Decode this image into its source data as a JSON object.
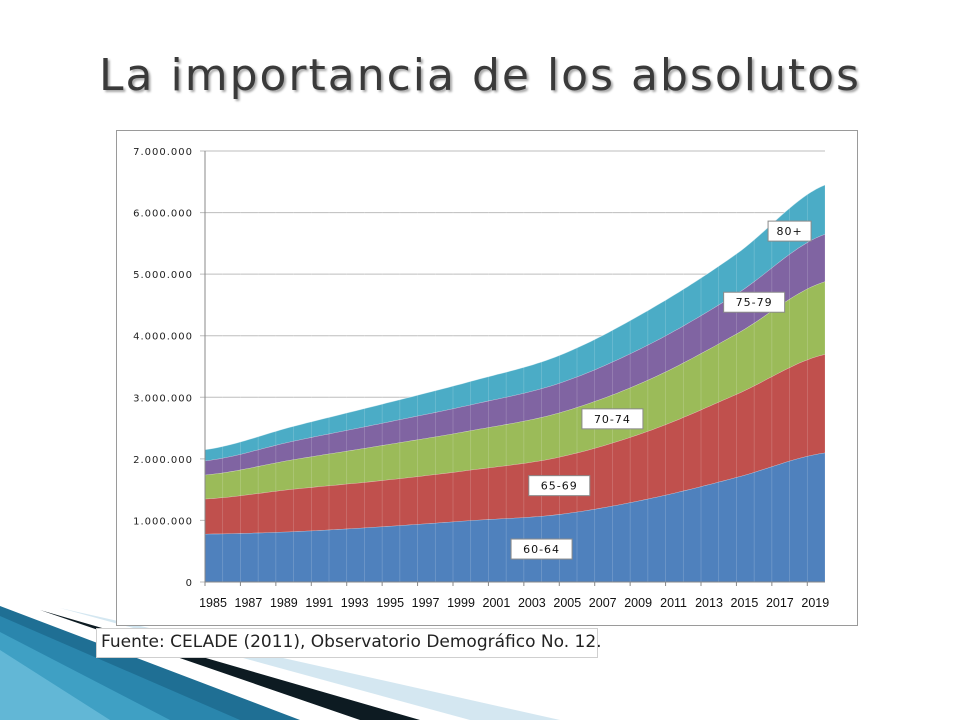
{
  "slide": {
    "title": "La importancia de los absolutos",
    "source_note": "Fuente: CELADE (2011), Observatorio Demográfico No. 12."
  },
  "colors": {
    "60-64": "#4f81bd",
    "65-69": "#c0504d",
    "70-74": "#9bbb59",
    "75-79": "#8064a2",
    "80+": "#4bacc6"
  },
  "chart_data": {
    "type": "area",
    "stacked": true,
    "x": [
      1985,
      1990,
      1995,
      2000,
      2005,
      2010,
      2015,
      2020
    ],
    "x_tick_labels": [
      "1985",
      "1987",
      "1989",
      "1991",
      "1993",
      "1995",
      "1997",
      "1999",
      "2001",
      "2003",
      "2005",
      "2007",
      "2009",
      "2011",
      "2013",
      "2015",
      "2017",
      "2019"
    ],
    "y_tick_labels": [
      "0",
      "1.000.000",
      "2.000.000",
      "3.000.000",
      "4.000.000",
      "5.000.000",
      "6.000.000",
      "7.000.000"
    ],
    "ylim": [
      0,
      7000000
    ],
    "grid": true,
    "series": [
      {
        "name": "60-64",
        "values": [
          780000,
          820000,
          900000,
          1000000,
          1100000,
          1350000,
          1700000,
          2100000
        ]
      },
      {
        "name": "65-69",
        "values": [
          570000,
          690000,
          750000,
          820000,
          930000,
          1100000,
          1350000,
          1600000
        ]
      },
      {
        "name": "70-74",
        "values": [
          390000,
          480000,
          570000,
          640000,
          720000,
          830000,
          980000,
          1180000
        ]
      },
      {
        "name": "75-79",
        "values": [
          230000,
          300000,
          360000,
          420000,
          480000,
          570000,
          650000,
          770000
        ]
      },
      {
        "name": "80+",
        "values": [
          180000,
          240000,
          310000,
          380000,
          450000,
          560000,
          650000,
          800000
        ]
      }
    ],
    "annotations": [
      {
        "label": "60-64",
        "series": "60-64",
        "x": 2004
      },
      {
        "label": "65-69",
        "series": "65-69",
        "x": 2005
      },
      {
        "label": "70-74",
        "series": "70-74",
        "x": 2008
      },
      {
        "label": "75-79",
        "series": "75-79",
        "x": 2016
      },
      {
        "label": "80+",
        "series": "80+",
        "x": 2018
      }
    ]
  }
}
